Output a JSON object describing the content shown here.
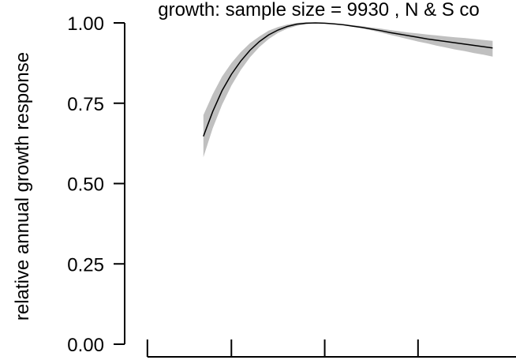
{
  "chart_data": {
    "type": "line",
    "title": "growth: sample size = 9930 , N & S co",
    "ylabel": "relative annual growth response",
    "xlabel": "",
    "ylim": [
      0,
      1
    ],
    "yticks": [
      0,
      0.25,
      0.5,
      0.75,
      1
    ],
    "ytick_labels": [
      "0.00",
      "0.25",
      "0.50",
      "0.75",
      "1.00"
    ],
    "xticks": [
      0.1,
      1,
      2,
      3
    ],
    "xtick_labels": [
      "",
      "",
      "",
      ""
    ],
    "xlim": [
      0,
      4.05
    ],
    "series": [
      {
        "x": [
          0.7,
          0.8,
          0.9,
          1.0,
          1.1,
          1.2,
          1.3,
          1.4,
          1.5,
          1.6,
          1.7,
          1.8,
          1.9,
          2.0,
          2.1,
          2.2,
          2.3,
          2.4,
          2.5,
          2.6,
          2.7,
          2.8,
          2.9,
          3.0,
          3.1,
          3.2,
          3.3,
          3.4,
          3.5,
          3.6,
          3.7,
          3.8
        ],
        "y": [
          0.647,
          0.724,
          0.789,
          0.84,
          0.881,
          0.915,
          0.942,
          0.963,
          0.978,
          0.989,
          0.996,
          0.999,
          1.0,
          0.999,
          0.997,
          0.994,
          0.99,
          0.986,
          0.981,
          0.976,
          0.97,
          0.965,
          0.96,
          0.955,
          0.95,
          0.946,
          0.942,
          0.938,
          0.934,
          0.93,
          0.926,
          0.922
        ],
        "lower": [
          0.582,
          0.672,
          0.745,
          0.805,
          0.853,
          0.893,
          0.925,
          0.95,
          0.969,
          0.982,
          0.991,
          0.996,
          0.999,
          0.999,
          0.997,
          0.993,
          0.988,
          0.983,
          0.977,
          0.97,
          0.963,
          0.956,
          0.949,
          0.942,
          0.936,
          0.929,
          0.923,
          0.917,
          0.912,
          0.906,
          0.901,
          0.895
        ],
        "upper": [
          0.713,
          0.778,
          0.833,
          0.875,
          0.909,
          0.937,
          0.958,
          0.976,
          0.987,
          0.995,
          1.0,
          1.002,
          1.001,
          1.0,
          0.998,
          0.996,
          0.993,
          0.99,
          0.986,
          0.982,
          0.978,
          0.974,
          0.97,
          0.967,
          0.964,
          0.961,
          0.958,
          0.955,
          0.953,
          0.95,
          0.947,
          0.944
        ],
        "line_color": "#000000",
        "band_color": "#c0c0c0"
      }
    ]
  }
}
